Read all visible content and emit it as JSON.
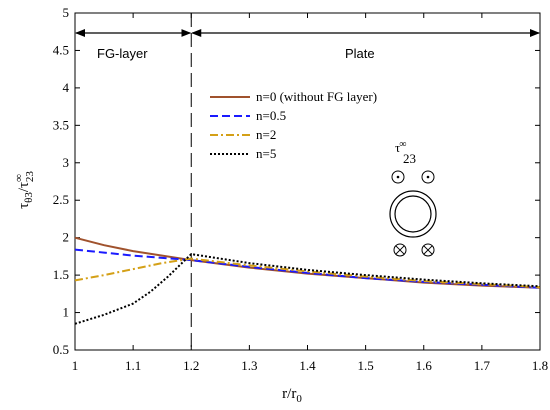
{
  "chart_data": {
    "type": "line",
    "xlabel": "r/r",
    "xlabel_sub": "0",
    "ylabel": "τ",
    "ylabel_sub1": "θ3",
    "ylabel_mid": "/τ",
    "ylabel_sup": "∞",
    "ylabel_sub2": "23",
    "xlim": [
      1,
      1.8
    ],
    "ylim": [
      0.5,
      5
    ],
    "xticks": [
      "1",
      "1.1",
      "1.2",
      "1.3",
      "1.4",
      "1.5",
      "1.6",
      "1.7",
      "1.8"
    ],
    "yticks": [
      "0.5",
      "1",
      "1.5",
      "2",
      "2.5",
      "3",
      "3.5",
      "4",
      "4.5",
      "5"
    ],
    "grid": false,
    "legend_position": "upper-middle",
    "regions": {
      "fg_label": "FG-layer",
      "plate_label": "Plate",
      "boundary_x": 1.2
    },
    "inset": {
      "label": "τ",
      "label_sup": "∞",
      "label_sub": "23"
    },
    "series": [
      {
        "name": "n=0 (without FG layer)",
        "color": "#a0522d",
        "dash": "",
        "x": [
          1.0,
          1.05,
          1.1,
          1.15,
          1.2,
          1.3,
          1.4,
          1.5,
          1.6,
          1.7,
          1.8
        ],
        "y": [
          2.0,
          1.9,
          1.82,
          1.76,
          1.7,
          1.6,
          1.52,
          1.46,
          1.4,
          1.36,
          1.33
        ]
      },
      {
        "name": "n=0.5",
        "color": "#1a1aff",
        "dash": "8,4",
        "x": [
          1.0,
          1.05,
          1.1,
          1.15,
          1.2,
          1.3,
          1.4,
          1.5,
          1.6,
          1.7,
          1.8
        ],
        "y": [
          1.84,
          1.8,
          1.76,
          1.73,
          1.7,
          1.61,
          1.53,
          1.46,
          1.41,
          1.37,
          1.33
        ]
      },
      {
        "name": "n=2",
        "color": "#d4a017",
        "dash": "8,3,2,3",
        "x": [
          1.0,
          1.05,
          1.1,
          1.15,
          1.2,
          1.3,
          1.4,
          1.5,
          1.6,
          1.7,
          1.8
        ],
        "y": [
          1.43,
          1.5,
          1.58,
          1.66,
          1.72,
          1.63,
          1.55,
          1.48,
          1.42,
          1.38,
          1.34
        ]
      },
      {
        "name": "n=5",
        "color": "#000000",
        "dash": "2,2",
        "x": [
          1.0,
          1.05,
          1.1,
          1.13,
          1.16,
          1.2,
          1.3,
          1.4,
          1.5,
          1.6,
          1.7,
          1.8
        ],
        "y": [
          0.85,
          0.97,
          1.12,
          1.28,
          1.48,
          1.78,
          1.66,
          1.57,
          1.5,
          1.44,
          1.39,
          1.35
        ]
      }
    ]
  }
}
